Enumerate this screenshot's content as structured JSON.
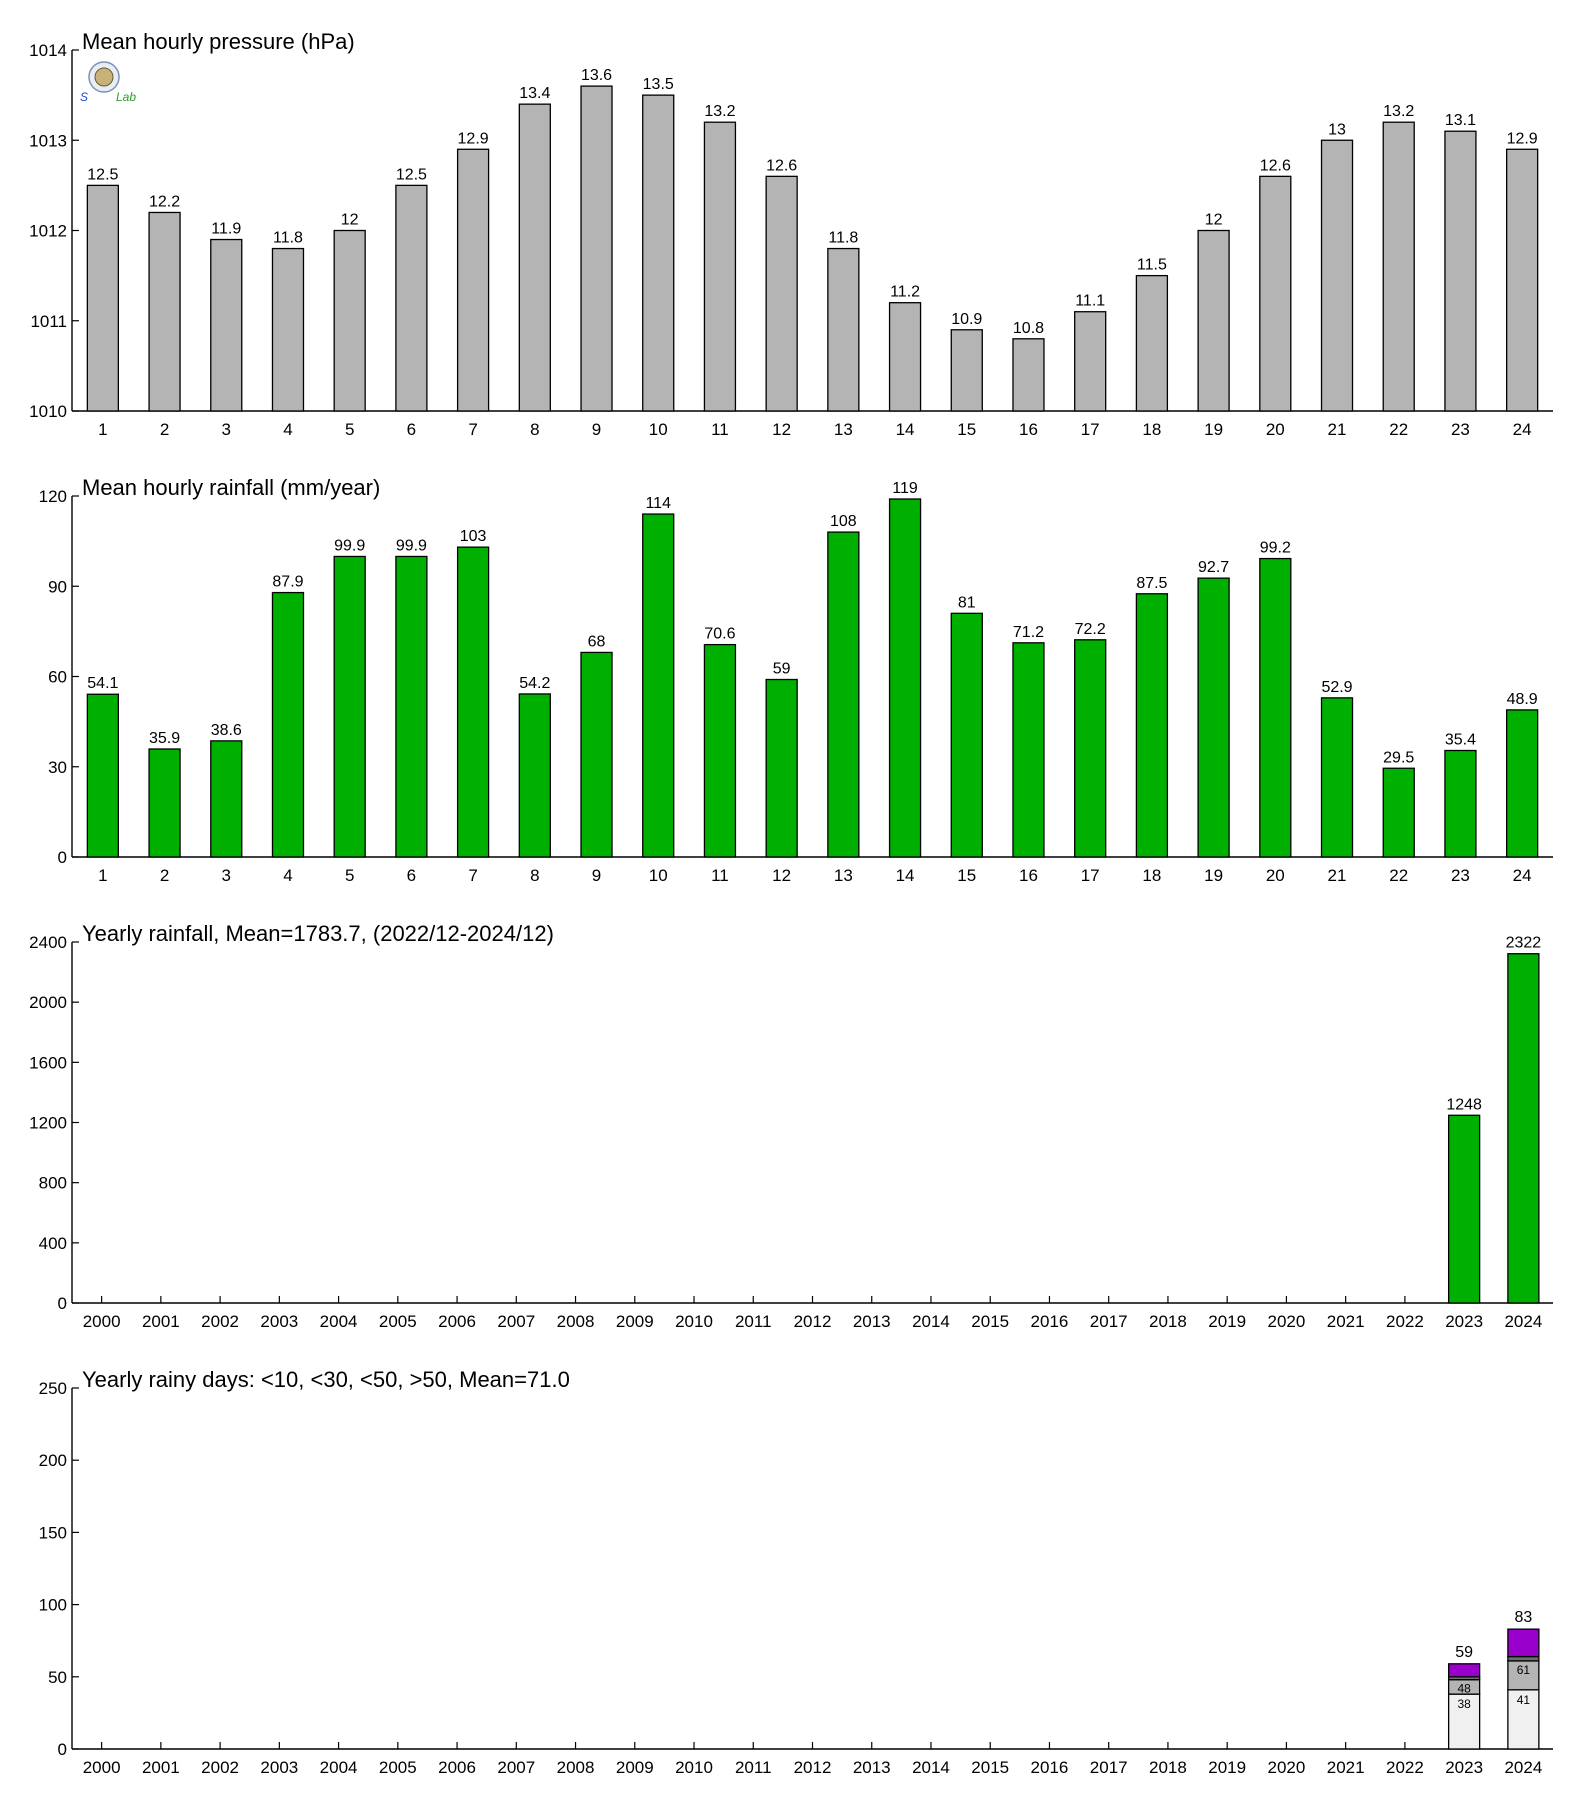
{
  "logo": {
    "text_top": "S",
    "text_lab": "Lab"
  },
  "chart_data": [
    {
      "id": "pressure",
      "type": "bar",
      "title": "Mean hourly pressure (hPa)",
      "categories": [
        "1",
        "2",
        "3",
        "4",
        "5",
        "6",
        "7",
        "8",
        "9",
        "10",
        "11",
        "12",
        "13",
        "14",
        "15",
        "16",
        "17",
        "18",
        "19",
        "20",
        "21",
        "22",
        "23",
        "24"
      ],
      "values": [
        1012.5,
        1012.2,
        1011.9,
        1011.8,
        1012.0,
        1012.5,
        1012.9,
        1013.4,
        1013.6,
        1013.5,
        1013.2,
        1012.6,
        1011.8,
        1011.2,
        1010.9,
        1010.8,
        1011.1,
        1011.5,
        1012.0,
        1012.6,
        1013.0,
        1013.2,
        1013.1,
        1012.9
      ],
      "value_labels": [
        "12.5",
        "12.2",
        "11.9",
        "11.8",
        "12",
        "12.5",
        "12.9",
        "13.4",
        "13.6",
        "13.5",
        "13.2",
        "12.6",
        "11.8",
        "11.2",
        "10.9",
        "10.8",
        "11.1",
        "11.5",
        "12",
        "12.6",
        "13",
        "13.2",
        "13.1",
        "12.9"
      ],
      "ylim": [
        1010,
        1014
      ],
      "yticks": [
        1010,
        1011,
        1012,
        1013,
        1014
      ],
      "color": "#b4b4b4",
      "grid": false
    },
    {
      "id": "hourly-rain",
      "type": "bar",
      "title": "Mean hourly rainfall (mm/year)",
      "categories": [
        "1",
        "2",
        "3",
        "4",
        "5",
        "6",
        "7",
        "8",
        "9",
        "10",
        "11",
        "12",
        "13",
        "14",
        "15",
        "16",
        "17",
        "18",
        "19",
        "20",
        "21",
        "22",
        "23",
        "24"
      ],
      "values": [
        54.1,
        35.9,
        38.6,
        87.9,
        99.9,
        99.9,
        103,
        54.2,
        68,
        114,
        70.6,
        59,
        108,
        119,
        81,
        71.2,
        72.2,
        87.5,
        92.7,
        99.2,
        52.9,
        29.5,
        35.4,
        48.9
      ],
      "value_labels": [
        "54.1",
        "35.9",
        "38.6",
        "87.9",
        "99.9",
        "99.9",
        "103",
        "54.2",
        "68",
        "114",
        "70.6",
        "59",
        "108",
        "119",
        "81",
        "71.2",
        "72.2",
        "87.5",
        "92.7",
        "99.2",
        "52.9",
        "29.5",
        "35.4",
        "48.9"
      ],
      "ylim": [
        0,
        120
      ],
      "yticks": [
        0,
        30,
        60,
        90,
        120
      ],
      "color": "#00b000",
      "grid": false
    },
    {
      "id": "yearly-rain",
      "type": "bar",
      "title": "Yearly rainfall, Mean=1783.7, (2022/12-2024/12)",
      "categories": [
        "2000",
        "2001",
        "2002",
        "2003",
        "2004",
        "2005",
        "2006",
        "2007",
        "2008",
        "2009",
        "2010",
        "2011",
        "2012",
        "2013",
        "2014",
        "2015",
        "2016",
        "2017",
        "2018",
        "2019",
        "2020",
        "2021",
        "2022",
        "2023",
        "2024"
      ],
      "values": [
        null,
        null,
        null,
        null,
        null,
        null,
        null,
        null,
        null,
        null,
        null,
        null,
        null,
        null,
        null,
        null,
        null,
        null,
        null,
        null,
        null,
        null,
        null,
        1248,
        2322
      ],
      "value_labels": [
        "",
        "",
        "",
        "",
        "",
        "",
        "",
        "",
        "",
        "",
        "",
        "",
        "",
        "",
        "",
        "",
        "",
        "",
        "",
        "",
        "",
        "",
        "",
        "1248",
        "2322"
      ],
      "ylim": [
        0,
        2400
      ],
      "yticks": [
        0,
        400,
        800,
        1200,
        1600,
        2000,
        2400
      ],
      "color": "#00b000",
      "grid": false
    },
    {
      "id": "rainy-days",
      "type": "bar",
      "stacked": true,
      "title": "Yearly rainy days: <10, <30, <50, >50, Mean=71.0",
      "categories": [
        "2000",
        "2001",
        "2002",
        "2003",
        "2004",
        "2005",
        "2006",
        "2007",
        "2008",
        "2009",
        "2010",
        "2011",
        "2012",
        "2013",
        "2014",
        "2015",
        "2016",
        "2017",
        "2018",
        "2019",
        "2020",
        "2021",
        "2022",
        "2023",
        "2024"
      ],
      "cumulative": [
        {
          "name": "<10",
          "color": "#f0f0f0",
          "values": [
            null,
            null,
            null,
            null,
            null,
            null,
            null,
            null,
            null,
            null,
            null,
            null,
            null,
            null,
            null,
            null,
            null,
            null,
            null,
            null,
            null,
            null,
            null,
            38,
            41
          ]
        },
        {
          "name": "<30",
          "color": "#b4b4b4",
          "values": [
            null,
            null,
            null,
            null,
            null,
            null,
            null,
            null,
            null,
            null,
            null,
            null,
            null,
            null,
            null,
            null,
            null,
            null,
            null,
            null,
            null,
            null,
            null,
            48,
            61
          ]
        },
        {
          "name": "<50",
          "color": "#6e6e6e",
          "values": [
            null,
            null,
            null,
            null,
            null,
            null,
            null,
            null,
            null,
            null,
            null,
            null,
            null,
            null,
            null,
            null,
            null,
            null,
            null,
            null,
            null,
            null,
            null,
            50,
            64
          ]
        },
        {
          "name": ">50",
          "color": "#9a00cc",
          "values": [
            null,
            null,
            null,
            null,
            null,
            null,
            null,
            null,
            null,
            null,
            null,
            null,
            null,
            null,
            null,
            null,
            null,
            null,
            null,
            null,
            null,
            null,
            null,
            59,
            83
          ]
        }
      ],
      "segment_labels": [
        {
          "category": "2023",
          "lower": "38",
          "upper": "48"
        },
        {
          "category": "2024",
          "lower": "41",
          "upper": "61"
        }
      ],
      "total_labels": [
        "",
        "",
        "",
        "",
        "",
        "",
        "",
        "",
        "",
        "",
        "",
        "",
        "",
        "",
        "",
        "",
        "",
        "",
        "",
        "",
        "",
        "",
        "",
        "59",
        "83"
      ],
      "ylim": [
        0,
        250
      ],
      "yticks": [
        0,
        50,
        100,
        150,
        200,
        250
      ],
      "grid": false
    }
  ]
}
